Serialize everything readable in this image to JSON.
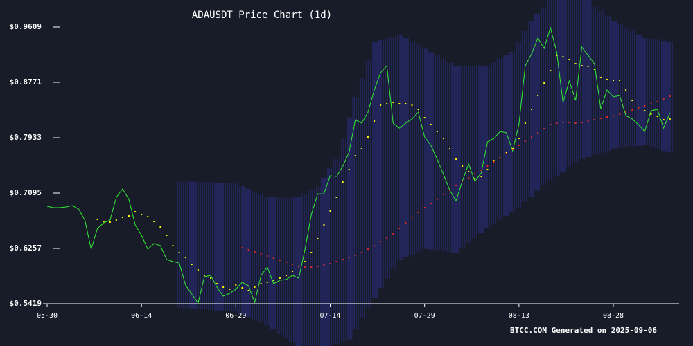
{
  "chart_data": {
    "type": "line",
    "title": "ADAUSDT Price Chart (1d)",
    "footer": "BTCC.COM Generated on 2025-09-06",
    "categories": [
      "05-30",
      "05-31",
      "06-01",
      "06-02",
      "06-03",
      "06-04",
      "06-05",
      "06-06",
      "06-07",
      "06-08",
      "06-09",
      "06-10",
      "06-11",
      "06-12",
      "06-13",
      "06-14",
      "06-15",
      "06-16",
      "06-17",
      "06-18",
      "06-19",
      "06-20",
      "06-21",
      "06-22",
      "06-23",
      "06-24",
      "06-25",
      "06-26",
      "06-27",
      "06-28",
      "06-29",
      "06-30",
      "07-01",
      "07-02",
      "07-03",
      "07-04",
      "07-05",
      "07-06",
      "07-07",
      "07-08",
      "07-09",
      "07-10",
      "07-11",
      "07-12",
      "07-13",
      "07-14",
      "07-15",
      "07-16",
      "07-17",
      "07-18",
      "07-19",
      "07-20",
      "07-21",
      "07-22",
      "07-23",
      "07-24",
      "07-25",
      "07-26",
      "07-27",
      "07-28",
      "07-29",
      "07-30",
      "07-31",
      "08-01",
      "08-02",
      "08-03",
      "08-04",
      "08-05",
      "08-06",
      "08-07",
      "08-08",
      "08-09",
      "08-10",
      "08-11",
      "08-12",
      "08-13",
      "08-14",
      "08-15",
      "08-16",
      "08-17",
      "08-18",
      "08-19",
      "08-20",
      "08-21",
      "08-22",
      "08-23",
      "08-24",
      "08-25",
      "08-26",
      "08-27",
      "08-28",
      "08-29",
      "08-30",
      "08-31",
      "09-01",
      "09-02",
      "09-03",
      "09-04",
      "09-05",
      "09-06"
    ],
    "xticks": [
      "05-30",
      "06-14",
      "06-29",
      "07-14",
      "07-29",
      "08-13",
      "08-28"
    ],
    "ylim": [
      0.5419,
      0.9609
    ],
    "yticks": [
      {
        "value": 0.5419,
        "label": "$0.5419"
      },
      {
        "value": 0.6257,
        "label": "$0.6257"
      },
      {
        "value": 0.7095,
        "label": "$0.7095"
      },
      {
        "value": 0.7933,
        "label": "$0.7933"
      },
      {
        "value": 0.8771,
        "label": "$0.8771"
      },
      {
        "value": 0.9609,
        "label": "$0.9609"
      }
    ],
    "band": {
      "color": "#2a2f86",
      "upper": [
        null,
        null,
        null,
        null,
        null,
        null,
        null,
        null,
        null,
        null,
        null,
        null,
        null,
        null,
        null,
        null,
        null,
        null,
        null,
        null,
        null,
        0.727,
        0.727,
        0.727,
        0.726,
        0.726,
        0.726,
        0.725,
        0.725,
        0.725,
        0.724,
        0.72,
        0.716,
        0.712,
        0.707,
        0.703,
        0.703,
        0.703,
        0.703,
        0.703,
        0.703,
        0.708,
        0.714,
        0.719,
        0.733,
        0.747,
        0.761,
        0.792,
        0.824,
        0.855,
        0.883,
        0.911,
        0.939,
        0.941,
        0.944,
        0.946,
        0.949,
        0.944,
        0.939,
        0.934,
        0.928,
        0.923,
        0.918,
        0.913,
        0.907,
        0.902,
        0.902,
        0.902,
        0.902,
        0.902,
        0.902,
        0.907,
        0.913,
        0.918,
        0.923,
        0.939,
        0.955,
        0.97,
        0.981,
        0.991,
        1.002,
        1.002,
        1.002,
        1.002,
        1.002,
        1.002,
        1.002,
        0.993,
        0.986,
        0.978,
        0.97,
        0.965,
        0.96,
        0.955,
        0.949,
        0.944,
        0.943,
        0.942,
        0.94,
        0.939
      ],
      "lower": [
        null,
        null,
        null,
        null,
        null,
        null,
        null,
        null,
        null,
        null,
        null,
        null,
        null,
        null,
        null,
        null,
        null,
        null,
        null,
        null,
        null,
        0.536,
        0.535,
        0.535,
        0.534,
        0.534,
        0.532,
        0.532,
        0.531,
        0.531,
        0.53,
        0.526,
        0.522,
        0.518,
        0.514,
        0.509,
        0.503,
        0.497,
        0.491,
        0.484,
        0.478,
        0.478,
        0.478,
        0.478,
        0.478,
        0.478,
        0.481,
        0.485,
        0.488,
        0.504,
        0.52,
        0.536,
        0.551,
        0.566,
        0.58,
        0.594,
        0.609,
        0.613,
        0.616,
        0.62,
        0.625,
        0.624,
        0.623,
        0.622,
        0.62,
        0.619,
        0.627,
        0.634,
        0.641,
        0.649,
        0.656,
        0.662,
        0.669,
        0.675,
        0.681,
        0.688,
        0.696,
        0.704,
        0.713,
        0.721,
        0.729,
        0.736,
        0.742,
        0.748,
        0.755,
        0.761,
        0.764,
        0.767,
        0.77,
        0.773,
        0.777,
        0.778,
        0.779,
        0.78,
        0.781,
        0.782,
        0.779,
        0.777,
        0.773,
        0.771
      ]
    },
    "series": [
      {
        "style": "line",
        "color": "#33ee33",
        "values": [
          0.6896,
          0.6875,
          0.6875,
          0.6885,
          0.6906,
          0.6854,
          0.6686,
          0.6246,
          0.6561,
          0.6644,
          0.6686,
          0.7032,
          0.7158,
          0.7001,
          0.6613,
          0.6456,
          0.6246,
          0.633,
          0.6299,
          0.6089,
          0.6058,
          0.6037,
          0.5702,
          0.5566,
          0.5429,
          0.5827,
          0.5848,
          0.567,
          0.5534,
          0.5576,
          0.5639,
          0.5744,
          0.5691,
          0.544,
          0.5848,
          0.5974,
          0.5723,
          0.5775,
          0.5786,
          0.5848,
          0.5807,
          0.6246,
          0.677,
          0.7084,
          0.7084,
          0.7357,
          0.7346,
          0.7503,
          0.7713,
          0.8205,
          0.8153,
          0.832,
          0.8655,
          0.8917,
          0.9022,
          0.8153,
          0.8079,
          0.8153,
          0.8216,
          0.832,
          0.7943,
          0.7818,
          0.7608,
          0.7378,
          0.7137,
          0.698,
          0.7273,
          0.7535,
          0.7273,
          0.7399,
          0.787,
          0.7922,
          0.8027,
          0.8006,
          0.7734,
          0.8132,
          0.9022,
          0.92,
          0.9441,
          0.9284,
          0.9598,
          0.9232,
          0.8467,
          0.8792,
          0.8498,
          0.9305,
          0.9179,
          0.9053,
          0.8373,
          0.8655,
          0.8551,
          0.8572,
          0.8268,
          0.8216,
          0.8132,
          0.8027,
          0.8341,
          0.8362,
          0.8079,
          0.831
        ]
      },
      {
        "style": "dots",
        "color": "#ffff00",
        "values": [
          null,
          null,
          null,
          null,
          null,
          null,
          null,
          null,
          0.6697,
          0.6665,
          0.6655,
          0.6686,
          0.6728,
          0.6749,
          0.6812,
          0.677,
          0.6739,
          0.6665,
          0.6582,
          0.6456,
          0.6299,
          0.6194,
          0.6121,
          0.6016,
          0.5932,
          0.5848,
          0.5807,
          0.5723,
          0.567,
          0.5639,
          0.5702,
          0.566,
          0.5618,
          0.567,
          0.5723,
          0.5744,
          0.5775,
          0.5807,
          0.5848,
          0.5911,
          0.5985,
          0.6058,
          0.6194,
          0.6404,
          0.6613,
          0.6823,
          0.7032,
          0.7262,
          0.7451,
          0.766,
          0.7765,
          0.7943,
          0.8184,
          0.8425,
          0.8446,
          0.8467,
          0.8446,
          0.8446,
          0.8425,
          0.8362,
          0.8236,
          0.8132,
          0.8027,
          0.7922,
          0.7765,
          0.7608,
          0.7503,
          0.742,
          0.7315,
          0.7346,
          0.7451,
          0.7587,
          0.7629,
          0.7713,
          0.7765,
          0.7922,
          0.8153,
          0.8362,
          0.8572,
          0.876,
          0.8949,
          0.9179,
          0.9158,
          0.9116,
          0.9053,
          0.9022,
          0.9012,
          0.897,
          0.8844,
          0.8813,
          0.8802,
          0.8802,
          0.8655,
          0.8498,
          0.8394,
          0.8341,
          0.8289,
          0.8257,
          0.8205,
          0.8216
        ]
      },
      {
        "style": "dots",
        "color": "#e02828",
        "values": [
          null,
          null,
          null,
          null,
          null,
          null,
          null,
          null,
          null,
          null,
          null,
          null,
          null,
          null,
          null,
          null,
          null,
          null,
          null,
          null,
          null,
          null,
          null,
          null,
          null,
          null,
          null,
          null,
          null,
          null,
          null,
          0.6267,
          0.6236,
          0.6205,
          0.6173,
          0.6142,
          0.611,
          0.6079,
          0.6047,
          0.6016,
          0.5985,
          0.5974,
          0.5974,
          0.5985,
          0.6006,
          0.6026,
          0.6058,
          0.6089,
          0.6121,
          0.6152,
          0.6194,
          0.6246,
          0.6299,
          0.6362,
          0.6414,
          0.6477,
          0.6561,
          0.6644,
          0.6728,
          0.6802,
          0.6875,
          0.6938,
          0.7001,
          0.7074,
          0.7137,
          0.721,
          0.7273,
          0.7325,
          0.7388,
          0.744,
          0.7503,
          0.7566,
          0.7629,
          0.7692,
          0.7755,
          0.7818,
          0.788,
          0.7943,
          0.8006,
          0.8069,
          0.8132,
          0.8153,
          0.8163,
          0.8163,
          0.8153,
          0.8163,
          0.8184,
          0.8205,
          0.8226,
          0.8247,
          0.8268,
          0.8289,
          0.832,
          0.8352,
          0.8383,
          0.8415,
          0.8446,
          0.8477,
          0.8519,
          0.8561
        ]
      }
    ]
  }
}
